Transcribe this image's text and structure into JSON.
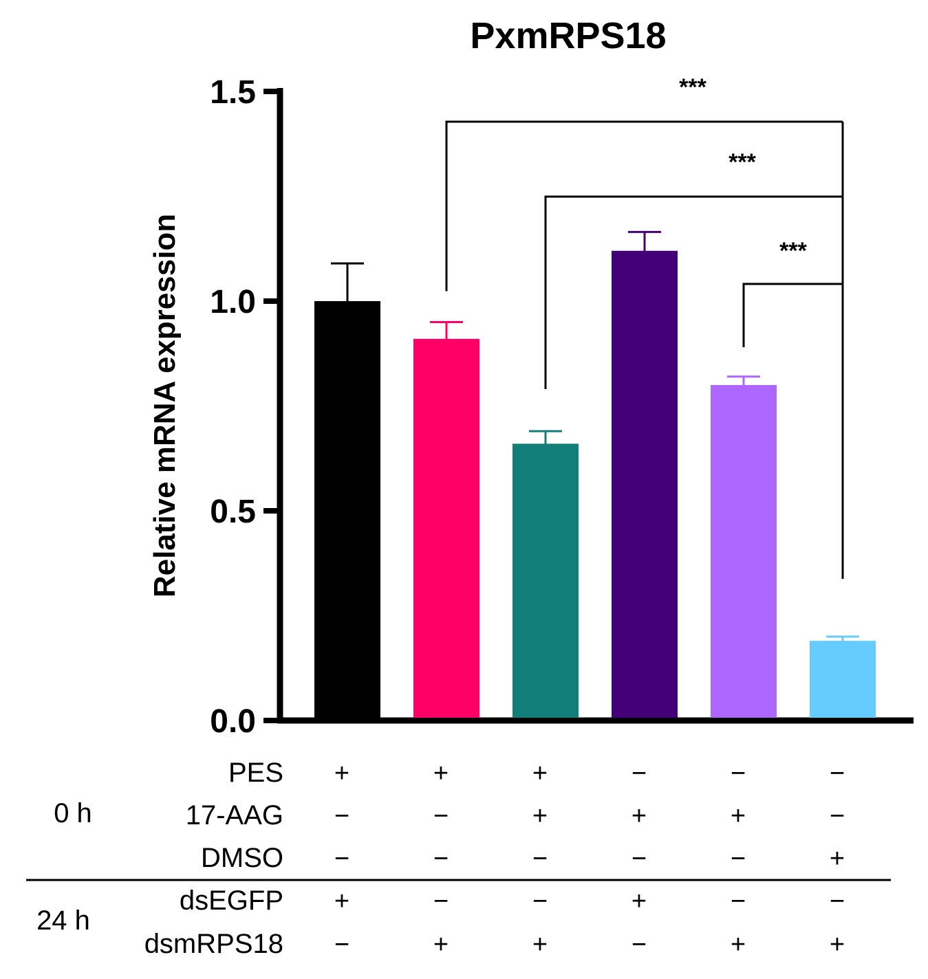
{
  "chart_data": {
    "type": "bar",
    "title": "PxmRPS18",
    "ylabel": "Relative mRNA expression",
    "xlabel": "",
    "ylim": [
      0,
      1.5
    ],
    "yticks": [
      0.0,
      0.5,
      1.0,
      1.5
    ],
    "ytick_labels": [
      "0.0",
      "0.5",
      "1.0",
      "1.5"
    ],
    "bars": [
      {
        "value": 1.0,
        "error": 0.09,
        "color": "#000000"
      },
      {
        "value": 0.91,
        "error": 0.04,
        "color": "#ff0066"
      },
      {
        "value": 0.66,
        "error": 0.03,
        "color": "#127e7a"
      },
      {
        "value": 1.12,
        "error": 0.045,
        "color": "#440077"
      },
      {
        "value": 0.8,
        "error": 0.02,
        "color": "#ad66ff"
      },
      {
        "value": 0.19,
        "error": 0.01,
        "color": "#66ccff"
      }
    ],
    "significance": [
      {
        "from": 1,
        "to": 5,
        "label": "***"
      },
      {
        "from": 2,
        "to": 5,
        "label": "***"
      },
      {
        "from": 4,
        "to": 5,
        "label": "***"
      }
    ],
    "treatment_table": {
      "groups": [
        {
          "label": "0 h",
          "rows": [
            {
              "name": "PES",
              "signs": [
                "+",
                "+",
                "+",
                "−",
                "−",
                "−"
              ]
            },
            {
              "name": "17-AAG",
              "signs": [
                "−",
                "−",
                "+",
                "+",
                "+",
                "−"
              ]
            },
            {
              "name": "DMSO",
              "signs": [
                "−",
                "−",
                "−",
                "−",
                "−",
                "+"
              ]
            }
          ]
        },
        {
          "label": "24 h",
          "rows": [
            {
              "name": "dsEGFP",
              "signs": [
                "+",
                "−",
                "−",
                "+",
                "−",
                "−"
              ]
            },
            {
              "name": "dsmRPS18",
              "signs": [
                "−",
                "+",
                "+",
                "−",
                "+",
                "+"
              ]
            }
          ]
        }
      ]
    }
  }
}
